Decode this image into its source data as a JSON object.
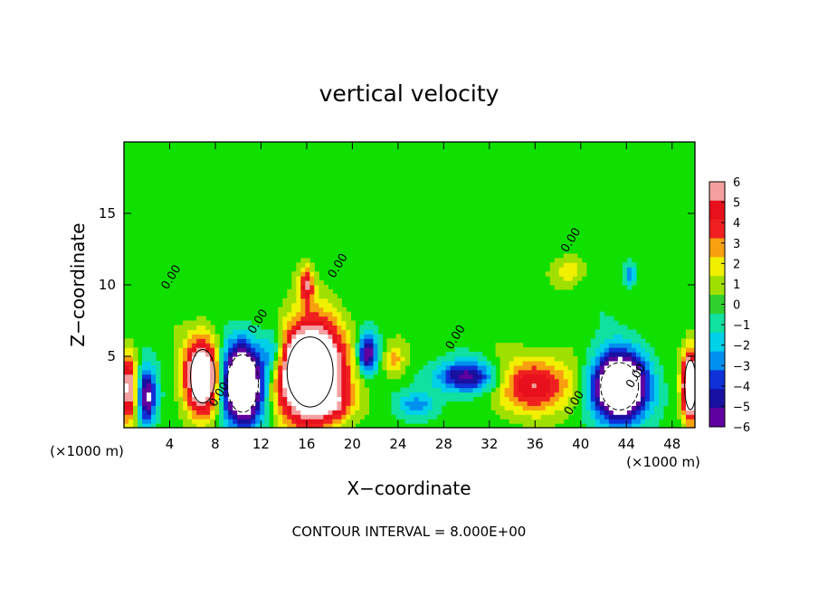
{
  "chart_data": {
    "type": "heatmap",
    "title": "vertical velocity",
    "xlabel": "X−coordinate",
    "ylabel": "Z−coordinate",
    "x_unit_label_left": "(×1000 m)",
    "x_unit_label_right": "(×1000 m)",
    "footer": "CONTOUR INTERVAL = 8.000E+00",
    "xlim": [
      0,
      50
    ],
    "ylim": [
      0,
      20
    ],
    "x_ticks": [
      4,
      8,
      12,
      16,
      20,
      24,
      28,
      32,
      36,
      40,
      44,
      48
    ],
    "x_tick_labels": [
      "4",
      "8",
      "12",
      "16",
      "20",
      "24",
      "28",
      "32",
      "36",
      "40",
      "44",
      "48"
    ],
    "y_ticks": [
      5,
      10,
      15
    ],
    "y_tick_labels": [
      "5",
      "10",
      "15"
    ],
    "colorbar": {
      "levels": [
        6,
        5,
        4,
        3,
        2,
        1,
        0,
        -1,
        -2,
        -3,
        -4,
        -5,
        -6
      ],
      "labels": [
        "6",
        "5",
        "4",
        "3",
        "2",
        "1",
        "0",
        "−1",
        "−2",
        "−3",
        "−4",
        "−5",
        "−6"
      ],
      "colors": [
        "#f4a0a0",
        "#e8101c",
        "#f02020",
        "#f8a010",
        "#f0f000",
        "#a0e000",
        "#30d030",
        "#10e0a0",
        "#00d0e8",
        "#0090f0",
        "#1030d8",
        "#1810a0",
        "#6000a0"
      ]
    },
    "contour_labels": [
      {
        "text": "0.00",
        "x": 4.4,
        "y": 10.4
      },
      {
        "text": "0.00",
        "x": 12.0,
        "y": 7.3
      },
      {
        "text": "0.00",
        "x": 8.6,
        "y": 2.2
      },
      {
        "text": "0.00",
        "x": 19.0,
        "y": 11.2
      },
      {
        "text": "0.00",
        "x": 29.3,
        "y": 6.2
      },
      {
        "text": "0.00",
        "x": 39.4,
        "y": 13.0
      },
      {
        "text": "0.00",
        "x": 39.7,
        "y": 1.6
      },
      {
        "text": "0.00",
        "x": 45.1,
        "y": 3.5
      }
    ],
    "features": [
      {
        "kind": "updraft",
        "x": 16.3,
        "z": 3.9,
        "sx": 2.8,
        "sz": 3.4,
        "value": 14
      },
      {
        "kind": "updraft",
        "x": 16.0,
        "z": 10.0,
        "sx": 0.6,
        "sz": 1.2,
        "value": 5
      },
      {
        "kind": "updraft",
        "x": 6.9,
        "z": 3.6,
        "sx": 1.5,
        "sz": 2.6,
        "value": 11
      },
      {
        "kind": "updraft",
        "x": 36.0,
        "z": 3.0,
        "sx": 3.4,
        "sz": 1.9,
        "value": 5.5
      },
      {
        "kind": "updraft",
        "x": 0.4,
        "z": 2.8,
        "sx": 0.7,
        "sz": 2.4,
        "value": 7
      },
      {
        "kind": "updraft",
        "x": 49.6,
        "z": 3.0,
        "sx": 0.7,
        "sz": 2.4,
        "value": 11
      },
      {
        "kind": "updraft",
        "x": 23.7,
        "z": 4.8,
        "sx": 0.9,
        "sz": 1.2,
        "value": 3
      },
      {
        "kind": "updraft",
        "x": 39.0,
        "z": 11.0,
        "sx": 1.3,
        "sz": 1.0,
        "value": 2.5
      },
      {
        "kind": "updraft",
        "x": 18.6,
        "z": 1.7,
        "sx": 1.6,
        "sz": 1.0,
        "value": 2.5
      },
      {
        "kind": "downdraft",
        "x": 10.4,
        "z": 3.1,
        "sx": 1.9,
        "sz": 2.8,
        "value": -12
      },
      {
        "kind": "downdraft",
        "x": 2.0,
        "z": 2.2,
        "sx": 0.8,
        "sz": 1.9,
        "value": -7
      },
      {
        "kind": "downdraft",
        "x": 43.4,
        "z": 2.9,
        "sx": 2.3,
        "sz": 2.3,
        "value": -13
      },
      {
        "kind": "downdraft",
        "x": 30.0,
        "z": 3.6,
        "sx": 2.8,
        "sz": 1.1,
        "value": -6
      },
      {
        "kind": "downdraft",
        "x": 21.3,
        "z": 5.2,
        "sx": 0.8,
        "sz": 1.3,
        "value": -7
      },
      {
        "kind": "downdraft",
        "x": 44.3,
        "z": 10.7,
        "sx": 0.5,
        "sz": 0.8,
        "value": -3.5
      },
      {
        "kind": "downdraft",
        "x": 13.1,
        "z": 5.3,
        "sx": 1.0,
        "sz": 1.6,
        "value": -4
      },
      {
        "kind": "downdraft",
        "x": 25.6,
        "z": 1.6,
        "sx": 1.8,
        "sz": 0.9,
        "value": -3
      }
    ]
  }
}
